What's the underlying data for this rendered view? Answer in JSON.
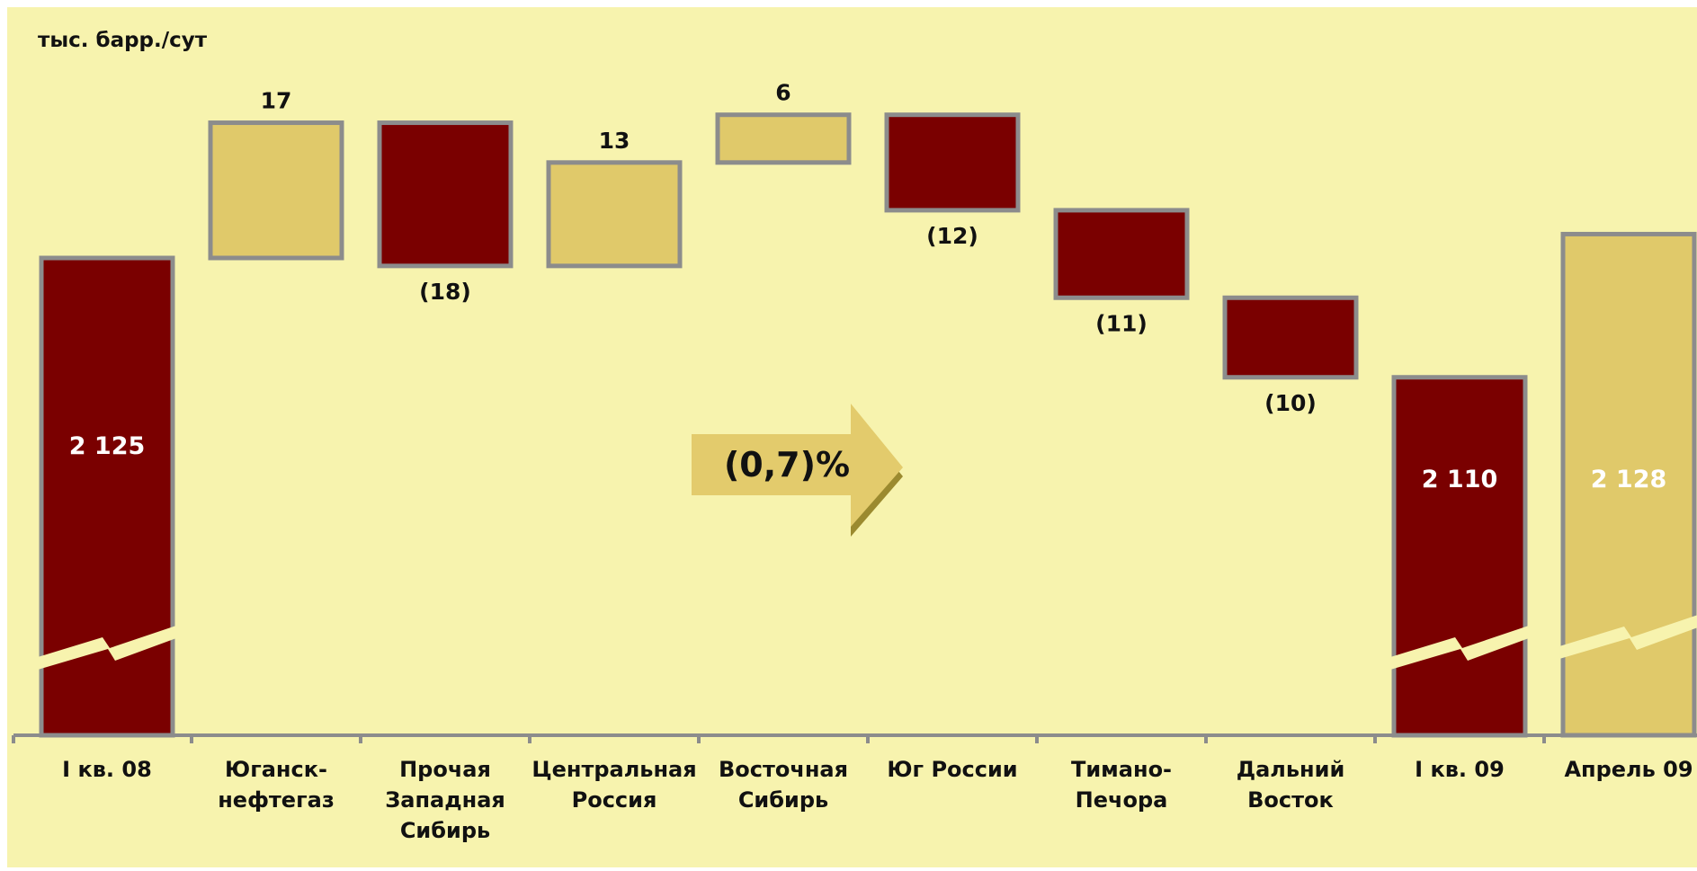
{
  "colors": {
    "background": "#F7F3AE",
    "increase": "#E0C96A",
    "decrease": "#7A0000",
    "border": "#8C8C8C",
    "text": "#111111",
    "bar_label_light": "#FFFFFF",
    "arrow_fill": "#E3CB6C",
    "arrow_shadow": "#9B8A2F"
  },
  "unit_label": "тыс. барр./сут",
  "annotation": {
    "text": "(0,7)%",
    "icon": "right-arrow-icon"
  },
  "chart_data": {
    "type": "bar",
    "subtype": "waterfall",
    "ylabel": "тыс. барр./сут",
    "axis_break": true,
    "categories": [
      "I кв. 08",
      "Юганск-\nнефтегаз",
      "Прочая\nЗападная\nСибирь",
      "Центральная\nРоссия",
      "Восточная\nСибирь",
      "Юг России",
      "Тимано-\nПечора",
      "Дальний\nВосток",
      "I кв. 09",
      "Апрель 09"
    ],
    "values": [
      2125,
      17,
      -18,
      13,
      6,
      -12,
      -11,
      -10,
      2110,
      2128
    ],
    "bar_kinds": [
      "total",
      "delta",
      "delta",
      "delta",
      "delta",
      "delta",
      "delta",
      "delta",
      "total",
      "total"
    ],
    "data_labels": [
      "2 125",
      "17",
      "(18)",
      "13",
      "6",
      "(12)",
      "(11)",
      "(10)",
      "2 110",
      "2 128"
    ],
    "visible_range": [
      2065,
      2152
    ]
  }
}
